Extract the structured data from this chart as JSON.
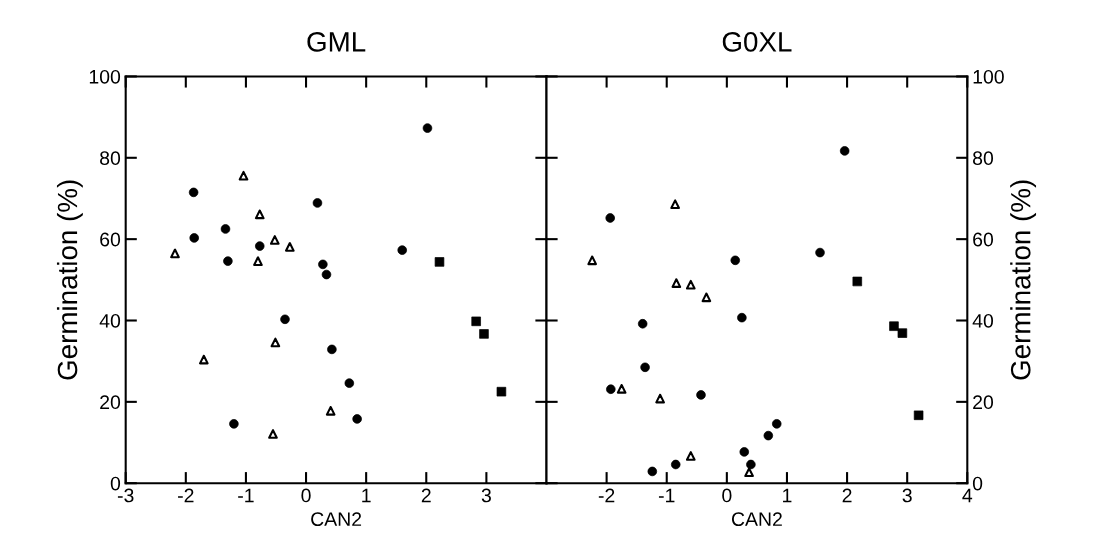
{
  "chart_data": [
    {
      "type": "scatter",
      "title": "GML",
      "xlabel": "CAN2",
      "ylabel": "Germination (%)",
      "xlim": [
        -3,
        4
      ],
      "xticks": [
        -3,
        -2,
        -1,
        0,
        1,
        2,
        3
      ],
      "ylim": [
        0,
        100
      ],
      "yticks": [
        0,
        20,
        40,
        60,
        80,
        100
      ],
      "grid": false,
      "series": [
        {
          "color": "#000000",
          "marker": "circle",
          "x": [
            -1.87,
            -1.86,
            -1.34,
            -1.3,
            -0.77,
            0.19,
            0.28,
            0.34,
            -0.35,
            0.43,
            0.72,
            0.85,
            -1.2,
            1.6,
            2.02
          ],
          "values": [
            71.5,
            60.3,
            62.5,
            54.6,
            58.3,
            68.9,
            53.8,
            51.3,
            40.3,
            32.9,
            24.6,
            15.8,
            14.6,
            57.3,
            87.3
          ]
        },
        {
          "color": "#000000",
          "marker": "square",
          "x": [
            2.22,
            2.83,
            2.96,
            3.25
          ],
          "values": [
            54.4,
            39.8,
            36.7,
            22.5
          ]
        },
        {
          "color": "#000000",
          "marker": "triangle",
          "x": [
            -2.18,
            -1.04,
            -0.77,
            -0.8,
            -0.52,
            -0.27,
            -1.7,
            -0.51,
            0.41,
            -0.55
          ],
          "values": [
            56.5,
            75.6,
            66.1,
            54.6,
            59.8,
            58.1,
            30.4,
            34.6,
            17.8,
            12.1
          ]
        }
      ]
    },
    {
      "type": "scatter",
      "title": "G0XL",
      "xlabel": "CAN2",
      "y2label": "Germination (%)",
      "xlim": [
        -3,
        4
      ],
      "xticks": [
        -2,
        -1,
        0,
        1,
        2,
        3,
        4
      ],
      "y2lim": [
        0,
        100
      ],
      "y2ticks": [
        0,
        20,
        40,
        60,
        80,
        100
      ],
      "grid": false,
      "series": [
        {
          "color": "#000000",
          "marker": "circle",
          "axis": "y2",
          "x": [
            -1.94,
            -1.93,
            -1.4,
            -1.36,
            -1.24,
            -0.85,
            -0.43,
            0.14,
            0.25,
            0.29,
            0.4,
            0.69,
            0.83,
            1.55,
            1.96
          ],
          "values": [
            65.2,
            23.1,
            39.2,
            28.5,
            2.9,
            4.6,
            21.7,
            54.8,
            40.7,
            7.7,
            4.6,
            11.7,
            14.6,
            56.7,
            81.7
          ]
        },
        {
          "color": "#000000",
          "marker": "square",
          "axis": "y2",
          "x": [
            2.17,
            2.78,
            2.92,
            3.19
          ],
          "values": [
            49.6,
            38.6,
            36.9,
            16.7
          ]
        },
        {
          "color": "#000000",
          "marker": "triangle",
          "axis": "y2",
          "x": [
            -2.24,
            -0.86,
            -0.84,
            -0.6,
            -0.34,
            -1.75,
            -1.11,
            -0.6,
            0.37
          ],
          "values": [
            54.8,
            68.6,
            49.2,
            48.8,
            45.7,
            23.2,
            20.8,
            6.7,
            2.7
          ]
        }
      ]
    }
  ]
}
